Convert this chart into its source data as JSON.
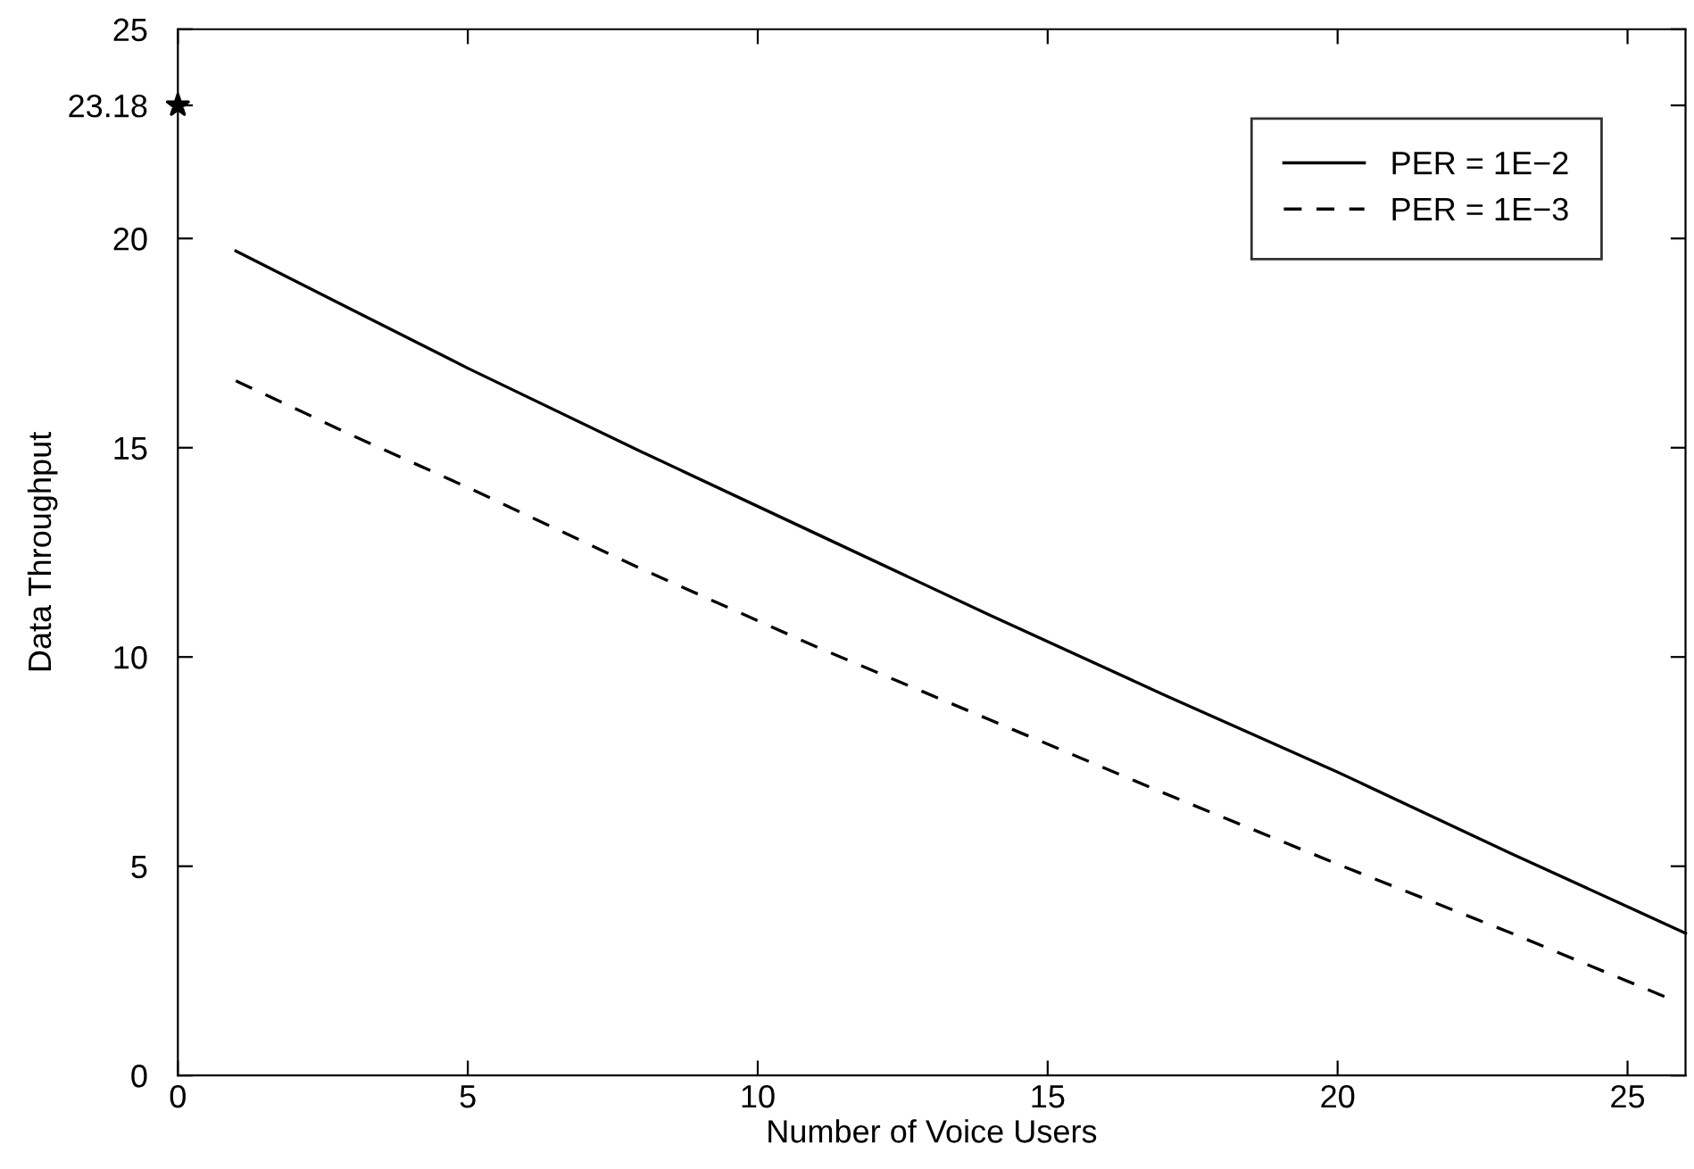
{
  "chart_data": {
    "type": "line",
    "xlabel": "Number of Voice Users",
    "ylabel": "Data Throughput",
    "xlim": [
      0,
      26
    ],
    "ylim": [
      0,
      25
    ],
    "xticks": [
      0,
      5,
      10,
      15,
      20,
      25
    ],
    "yticks": [
      0,
      5,
      10,
      15,
      20,
      23.18,
      25
    ],
    "legend": "top right",
    "grid": false,
    "series": [
      {
        "name": "PER = 1E−2",
        "color": "#000000",
        "line_style": "solid",
        "marker": "none",
        "x": [
          1,
          3,
          5,
          8,
          11,
          14,
          17,
          20,
          23,
          26
        ],
        "values": [
          19.7,
          18.3,
          16.9,
          14.9,
          12.95,
          11.0,
          9.1,
          7.25,
          5.3,
          3.4
        ]
      },
      {
        "name": "PER = 1E−3",
        "color": "#000000",
        "line_style": "dashed",
        "marker": "none",
        "x": [
          1,
          3,
          5,
          8,
          11,
          14,
          17,
          20,
          23,
          25.7
        ],
        "values": [
          16.6,
          15.3,
          14.05,
          12.1,
          10.25,
          8.5,
          6.75,
          5.05,
          3.4,
          1.85
        ]
      },
      {
        "type": "scatter",
        "color": "#000000",
        "marker": "star",
        "x": [
          0
        ],
        "values": [
          23.18
        ]
      }
    ]
  }
}
